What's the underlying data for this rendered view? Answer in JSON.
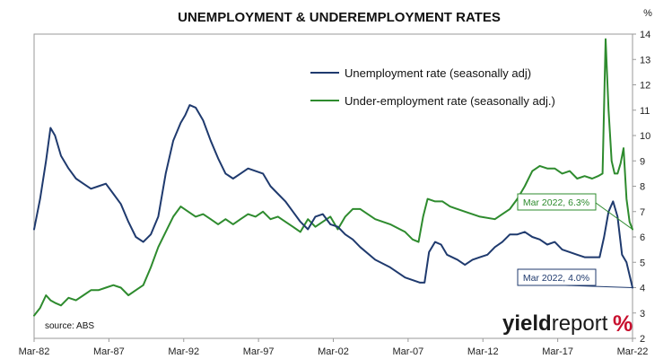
{
  "chart_data": {
    "type": "line",
    "title": "UNEMPLOYMENT & UNDEREMPLOYMENT RATES",
    "y_unit": "%",
    "ylim": [
      2,
      14
    ],
    "y_ticks": [
      "2",
      "3",
      "4",
      "5",
      "6",
      "7",
      "8",
      "9",
      "10",
      "11",
      "12",
      "13",
      "14"
    ],
    "x_ticks": [
      "Mar-82",
      "Mar-87",
      "Mar-92",
      "Mar-97",
      "Mar-02",
      "Mar-07",
      "Mar-12",
      "Mar-17",
      "Mar-22"
    ],
    "x_range": [
      "1982-03",
      "2022-03"
    ],
    "grid": false,
    "legend_position": "top-center",
    "source": "source: ABS",
    "brand": {
      "bold": "yield",
      "light": "report",
      "mark": "%"
    },
    "series": [
      {
        "name": "Unemployment rate (seasonally adj)",
        "color": "#1f3a6e",
        "x": [
          1982.2,
          1982.6,
          1983.0,
          1983.3,
          1983.6,
          1984.0,
          1984.5,
          1985.0,
          1985.5,
          1986.0,
          1986.5,
          1987.0,
          1987.5,
          1988.0,
          1988.5,
          1989.0,
          1989.5,
          1990.0,
          1990.5,
          1991.0,
          1991.5,
          1992.0,
          1992.3,
          1992.6,
          1993.0,
          1993.5,
          1994.0,
          1994.5,
          1995.0,
          1995.5,
          1996.0,
          1996.5,
          1997.0,
          1997.5,
          1998.0,
          1998.5,
          1999.0,
          1999.5,
          2000.0,
          2000.5,
          2001.0,
          2001.5,
          2002.0,
          2002.5,
          2003.0,
          2003.5,
          2004.0,
          2005.0,
          2006.0,
          2007.0,
          2008.0,
          2008.3,
          2008.6,
          2009.0,
          2009.4,
          2009.8,
          2010.5,
          2011.0,
          2011.5,
          2012.0,
          2012.5,
          2013.0,
          2013.5,
          2014.0,
          2014.5,
          2015.0,
          2015.5,
          2016.0,
          2016.5,
          2017.0,
          2017.5,
          2018.0,
          2018.5,
          2019.0,
          2019.5,
          2020.0,
          2020.3,
          2020.6,
          2020.9,
          2021.2,
          2021.5,
          2021.8,
          2022.2
        ],
        "y": [
          6.3,
          7.5,
          9.0,
          10.3,
          10.0,
          9.2,
          8.7,
          8.3,
          8.1,
          7.9,
          8.0,
          8.1,
          7.7,
          7.3,
          6.6,
          6.0,
          5.8,
          6.1,
          6.8,
          8.5,
          9.8,
          10.5,
          10.8,
          11.2,
          11.1,
          10.6,
          9.8,
          9.1,
          8.5,
          8.3,
          8.5,
          8.7,
          8.6,
          8.5,
          8.0,
          7.7,
          7.4,
          7.0,
          6.6,
          6.3,
          6.8,
          6.9,
          6.5,
          6.4,
          6.1,
          5.9,
          5.6,
          5.1,
          4.8,
          4.4,
          4.2,
          4.2,
          5.4,
          5.8,
          5.7,
          5.3,
          5.1,
          4.9,
          5.1,
          5.2,
          5.3,
          5.6,
          5.8,
          6.1,
          6.1,
          6.2,
          6.0,
          5.9,
          5.7,
          5.8,
          5.5,
          5.4,
          5.3,
          5.2,
          5.2,
          5.2,
          6.0,
          7.0,
          7.4,
          6.8,
          5.3,
          5.0,
          4.0
        ]
      },
      {
        "name": "Under-employment rate (seasonally adj.)",
        "color": "#2e8b2e",
        "x": [
          1982.2,
          1982.6,
          1983.0,
          1983.3,
          1983.6,
          1984.0,
          1984.5,
          1985.0,
          1985.5,
          1986.0,
          1986.5,
          1987.0,
          1987.5,
          1988.0,
          1988.5,
          1989.0,
          1989.5,
          1990.0,
          1990.5,
          1991.0,
          1991.5,
          1992.0,
          1992.5,
          1993.0,
          1993.5,
          1994.0,
          1994.5,
          1995.0,
          1995.5,
          1996.0,
          1996.5,
          1997.0,
          1997.5,
          1998.0,
          1998.5,
          1999.0,
          1999.5,
          2000.0,
          2000.5,
          2001.0,
          2001.5,
          2002.0,
          2002.5,
          2003.0,
          2003.5,
          2004.0,
          2005.0,
          2006.0,
          2007.0,
          2007.5,
          2007.9,
          2008.2,
          2008.5,
          2009.0,
          2009.5,
          2010.0,
          2011.0,
          2012.0,
          2013.0,
          2013.5,
          2014.0,
          2014.5,
          2015.0,
          2015.5,
          2016.0,
          2016.5,
          2017.0,
          2017.5,
          2018.0,
          2018.5,
          2019.0,
          2019.5,
          2019.9,
          2020.2,
          2020.4,
          2020.6,
          2020.8,
          2021.0,
          2021.2,
          2021.4,
          2021.6,
          2021.8,
          2022.0,
          2022.2
        ],
        "y": [
          2.9,
          3.2,
          3.7,
          3.5,
          3.4,
          3.3,
          3.6,
          3.5,
          3.7,
          3.9,
          3.9,
          4.0,
          4.1,
          4.0,
          3.7,
          3.9,
          4.1,
          4.8,
          5.6,
          6.2,
          6.8,
          7.2,
          7.0,
          6.8,
          6.9,
          6.7,
          6.5,
          6.7,
          6.5,
          6.7,
          6.9,
          6.8,
          7.0,
          6.7,
          6.8,
          6.6,
          6.4,
          6.2,
          6.7,
          6.4,
          6.6,
          6.8,
          6.3,
          6.8,
          7.1,
          7.1,
          6.7,
          6.5,
          6.2,
          5.9,
          5.8,
          6.8,
          7.5,
          7.4,
          7.4,
          7.2,
          7.0,
          6.8,
          6.7,
          6.9,
          7.1,
          7.5,
          8.0,
          8.6,
          8.8,
          8.7,
          8.7,
          8.5,
          8.6,
          8.3,
          8.4,
          8.3,
          8.4,
          8.5,
          13.8,
          11.0,
          9.0,
          8.5,
          8.5,
          8.9,
          9.5,
          7.5,
          6.6,
          6.3
        ]
      }
    ],
    "annotations": [
      {
        "series": 1,
        "text": "Mar 2022, 6.3%",
        "point": [
          2022.2,
          6.3
        ]
      },
      {
        "series": 0,
        "text": "Mar 2022, 4.0%",
        "point": [
          2022.2,
          4.0
        ]
      }
    ]
  }
}
